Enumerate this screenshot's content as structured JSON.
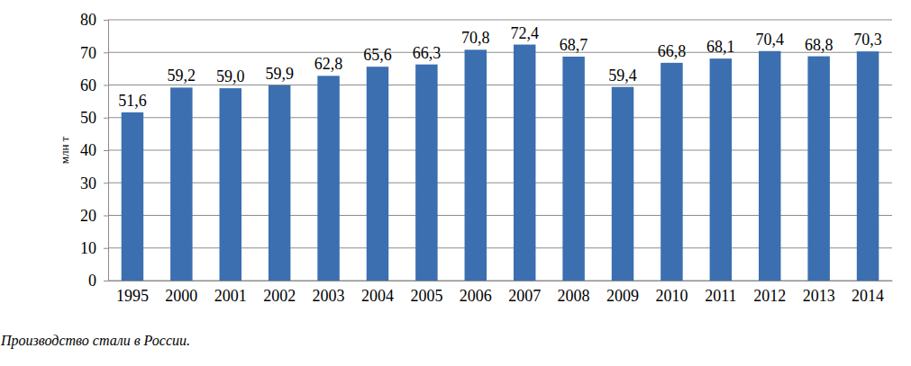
{
  "chart_data": {
    "type": "bar",
    "title": "Производство стали в России.",
    "y_label": "млн т",
    "categories": [
      "1995",
      "2000",
      "2001",
      "2002",
      "2003",
      "2004",
      "2005",
      "2006",
      "2007",
      "2008",
      "2009",
      "2010",
      "2011",
      "2012",
      "2013",
      "2014"
    ],
    "values": [
      51.6,
      59.2,
      59.0,
      59.9,
      62.8,
      65.6,
      66.3,
      70.8,
      72.4,
      68.7,
      59.4,
      66.8,
      68.1,
      70.4,
      68.8,
      70.3
    ],
    "value_labels": [
      "51,6",
      "59,2",
      "59,0",
      "59,9",
      "62,8",
      "65,6",
      "66,3",
      "70,8",
      "72,4",
      "68,7",
      "59,4",
      "66,8",
      "68,1",
      "70,4",
      "68,8",
      "70,3"
    ],
    "color": "#3b6fb0",
    "ylim": [
      0,
      80
    ],
    "yticks": [
      0,
      10,
      20,
      30,
      40,
      50,
      60,
      70,
      80
    ],
    "grid": true,
    "data_labels": true
  }
}
